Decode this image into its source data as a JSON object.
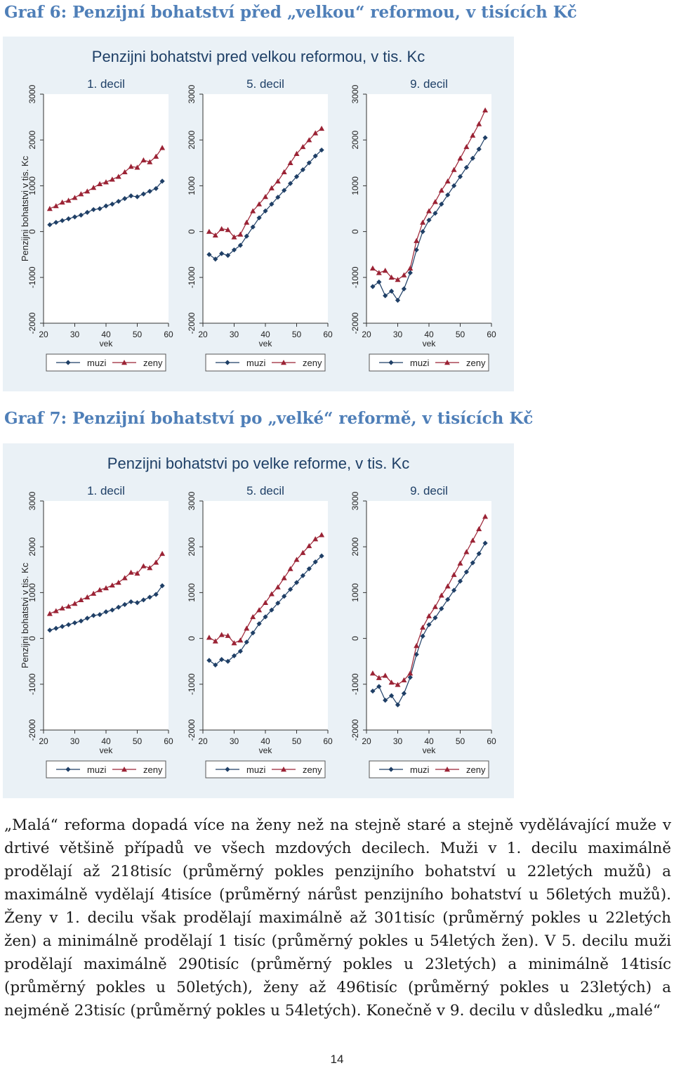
{
  "captions": {
    "graf6": "Graf 6: Penzijní bohatství před „velkou“ reformou, v tisících Kč",
    "graf7": "Graf 7: Penzijní bohatství po „velké“ reformě, v tisících Kč"
  },
  "colors": {
    "muzi": "#1f3f66",
    "zeny": "#9b2335",
    "background": "#eaf1f6",
    "plot_bg": "#ffffff"
  },
  "chart_data": [
    {
      "type": "line",
      "title": "Penzijni bohatstvi pred velkou reformou, v tis. Kc",
      "ylabel": "Penzijni bohatstvi v tis. Kc",
      "xlabel": "vek",
      "xlim": [
        20,
        60
      ],
      "ylim": [
        -2000,
        3000
      ],
      "xticks": [
        20,
        30,
        40,
        50,
        60
      ],
      "yticks": [
        -2000,
        -1000,
        0,
        1000,
        2000,
        3000
      ],
      "grid": false,
      "legend_position": "bottom",
      "panels": [
        {
          "title": "1. decil",
          "x": [
            22,
            24,
            26,
            28,
            30,
            32,
            34,
            36,
            38,
            40,
            42,
            44,
            46,
            48,
            50,
            52,
            54,
            56,
            58
          ],
          "series": [
            {
              "name": "muzi",
              "values": [
                150,
                200,
                240,
                280,
                320,
                360,
                420,
                480,
                500,
                560,
                600,
                660,
                720,
                780,
                760,
                820,
                880,
                940,
                1100
              ]
            },
            {
              "name": "zeny",
              "values": [
                500,
                560,
                640,
                680,
                740,
                820,
                880,
                960,
                1040,
                1080,
                1140,
                1200,
                1300,
                1420,
                1400,
                1560,
                1520,
                1640,
                1830
              ]
            }
          ]
        },
        {
          "title": "5. decil",
          "x": [
            22,
            24,
            26,
            28,
            30,
            32,
            34,
            36,
            38,
            40,
            42,
            44,
            46,
            48,
            50,
            52,
            54,
            56,
            58
          ],
          "series": [
            {
              "name": "muzi",
              "values": [
                -500,
                -600,
                -480,
                -520,
                -400,
                -300,
                -100,
                100,
                300,
                450,
                600,
                750,
                900,
                1050,
                1200,
                1350,
                1500,
                1650,
                1780
              ]
            },
            {
              "name": "zeny",
              "values": [
                0,
                -80,
                60,
                40,
                -120,
                -60,
                200,
                450,
                600,
                760,
                950,
                1100,
                1300,
                1500,
                1700,
                1850,
                2000,
                2150,
                2250
              ]
            }
          ]
        },
        {
          "title": "9. decil",
          "x": [
            22,
            24,
            26,
            28,
            30,
            32,
            34,
            36,
            38,
            40,
            42,
            44,
            46,
            48,
            50,
            52,
            54,
            56,
            58
          ],
          "series": [
            {
              "name": "muzi",
              "values": [
                -1200,
                -1100,
                -1400,
                -1300,
                -1500,
                -1250,
                -900,
                -400,
                0,
                250,
                400,
                600,
                800,
                1000,
                1200,
                1400,
                1600,
                1800,
                2050
              ]
            },
            {
              "name": "zeny",
              "values": [
                -800,
                -900,
                -850,
                -1000,
                -1050,
                -950,
                -800,
                -200,
                200,
                450,
                650,
                900,
                1100,
                1350,
                1600,
                1850,
                2100,
                2350,
                2650
              ]
            }
          ]
        }
      ]
    },
    {
      "type": "line",
      "title": "Penzijni bohatstvi po velke reforme, v tis. Kc",
      "ylabel": "Penzijni bohatstvi v tis. Kc",
      "xlabel": "vek",
      "xlim": [
        20,
        60
      ],
      "ylim": [
        -2000,
        3000
      ],
      "xticks": [
        20,
        30,
        40,
        50,
        60
      ],
      "yticks": [
        -2000,
        -1000,
        0,
        1000,
        2000,
        3000
      ],
      "grid": false,
      "legend_position": "bottom",
      "panels": [
        {
          "title": "1. decil",
          "x": [
            22,
            24,
            26,
            28,
            30,
            32,
            34,
            36,
            38,
            40,
            42,
            44,
            46,
            48,
            50,
            52,
            54,
            56,
            58
          ],
          "series": [
            {
              "name": "muzi",
              "values": [
                180,
                220,
                260,
                300,
                340,
                380,
                440,
                500,
                520,
                580,
                620,
                680,
                740,
                800,
                780,
                840,
                900,
                960,
                1150
              ]
            },
            {
              "name": "zeny",
              "values": [
                540,
                600,
                660,
                700,
                760,
                840,
                900,
                980,
                1060,
                1100,
                1160,
                1220,
                1320,
                1440,
                1420,
                1580,
                1540,
                1660,
                1850
              ]
            }
          ]
        },
        {
          "title": "5. decil",
          "x": [
            22,
            24,
            26,
            28,
            30,
            32,
            34,
            36,
            38,
            40,
            42,
            44,
            46,
            48,
            50,
            52,
            54,
            56,
            58
          ],
          "series": [
            {
              "name": "muzi",
              "values": [
                -480,
                -580,
                -460,
                -500,
                -380,
                -280,
                -80,
                120,
                320,
                470,
                620,
                770,
                920,
                1070,
                1220,
                1370,
                1520,
                1670,
                1800
              ]
            },
            {
              "name": "zeny",
              "values": [
                20,
                -60,
                80,
                60,
                -100,
                -40,
                220,
                470,
                620,
                780,
                970,
                1120,
                1320,
                1520,
                1720,
                1870,
                2020,
                2170,
                2260
              ]
            }
          ]
        },
        {
          "title": "9. decil",
          "x": [
            22,
            24,
            26,
            28,
            30,
            32,
            34,
            36,
            38,
            40,
            42,
            44,
            46,
            48,
            50,
            52,
            54,
            56,
            58
          ],
          "series": [
            {
              "name": "muzi",
              "values": [
                -1150,
                -1050,
                -1350,
                -1250,
                -1450,
                -1200,
                -850,
                -350,
                50,
                300,
                450,
                650,
                850,
                1050,
                1250,
                1450,
                1650,
                1850,
                2080
              ]
            },
            {
              "name": "zeny",
              "values": [
                -760,
                -860,
                -810,
                -960,
                -1010,
                -910,
                -760,
                -160,
                240,
                490,
                690,
                940,
                1140,
                1390,
                1640,
                1890,
                2140,
                2390,
                2660
              ]
            }
          ]
        }
      ]
    }
  ],
  "paragraph": "„Malá“ reforma dopadá více na ženy než na stejně staré a stejně vydělávající muže v drtivé většině případů ve všech mzdových decilech. Muži v 1. decilu maximálně prodělají až 218tisíc (průměrný pokles penzijního bohatství u 22letých mužů) a maximálně vydělají 4tisíce (průměrný nárůst penzijního bohatství u 56letých mužů). Ženy v 1. decilu však prodělají maximálně až 301tisíc (průměrný pokles u 22letých žen) a minimálně prodělají 1 tisíc (průměrný pokles u 54letých žen). V 5. decilu muži prodělají maximálně 290tisíc (průměrný pokles u 23letých) a minimálně 14tisíc (průměrný pokles u 50letých), ženy až 496tisíc (průměrný pokles u 23letých) a nejméně 23tisíc (průměrný pokles u 54letých). Konečně v 9. decilu v důsledku „malé“",
  "page_number": "14"
}
